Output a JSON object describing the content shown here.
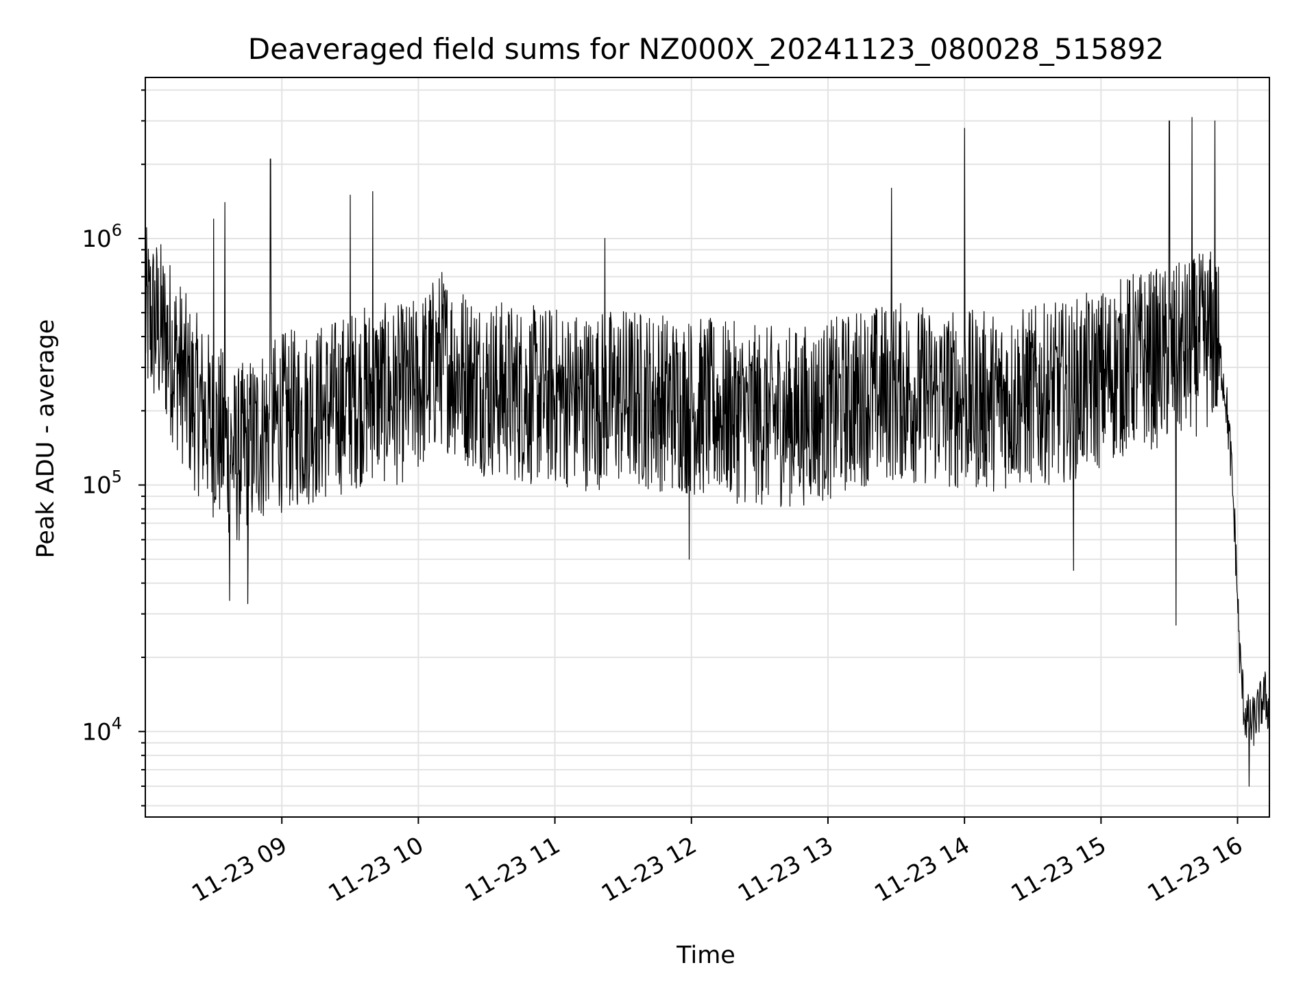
{
  "chart_data": {
    "type": "line",
    "title": "Deaveraged field sums for NZ000X_20241123_080028_515892",
    "xlabel": "Time",
    "ylabel": "Peak ADU - average",
    "yscale": "log",
    "grid": true,
    "x_start": "2024-11-23 08:00",
    "x_end": "2024-11-23 16:14",
    "ylim": [
      4500,
      4500000
    ],
    "x_ticks": [
      {
        "time": "2024-11-23 09:00",
        "label": "11-23 09"
      },
      {
        "time": "2024-11-23 10:00",
        "label": "11-23 10"
      },
      {
        "time": "2024-11-23 11:00",
        "label": "11-23 11"
      },
      {
        "time": "2024-11-23 12:00",
        "label": "11-23 12"
      },
      {
        "time": "2024-11-23 13:00",
        "label": "11-23 13"
      },
      {
        "time": "2024-11-23 14:00",
        "label": "11-23 14"
      },
      {
        "time": "2024-11-23 15:00",
        "label": "11-23 15"
      },
      {
        "time": "2024-11-23 16:00",
        "label": "11-23 16"
      }
    ],
    "y_ticks": [
      {
        "value": 10000,
        "base": "10",
        "exp": "4"
      },
      {
        "value": 100000,
        "base": "10",
        "exp": "5"
      },
      {
        "value": 1000000,
        "base": "10",
        "exp": "6"
      }
    ],
    "series": [
      {
        "color": "#000000",
        "points": [
          [
            "2024-11-23 08:00",
            480000
          ],
          [
            "2024-11-23 08:05",
            450000
          ],
          [
            "2024-11-23 08:10",
            380000
          ],
          [
            "2024-11-23 08:15",
            300000
          ],
          [
            "2024-11-23 08:20",
            230000
          ],
          [
            "2024-11-23 08:25",
            200000
          ],
          [
            "2024-11-23 08:30",
            170000
          ],
          [
            "2024-11-23 08:35",
            150000
          ],
          [
            "2024-11-23 08:40",
            130000
          ],
          [
            "2024-11-23 08:45",
            140000
          ],
          [
            "2024-11-23 08:50",
            160000
          ],
          [
            "2024-11-23 08:55",
            170000
          ],
          [
            "2024-11-23 09:00",
            180000
          ],
          [
            "2024-11-23 09:10",
            190000
          ],
          [
            "2024-11-23 09:20",
            200000
          ],
          [
            "2024-11-23 09:30",
            220000
          ],
          [
            "2024-11-23 09:40",
            240000
          ],
          [
            "2024-11-23 09:50",
            230000
          ],
          [
            "2024-11-23 10:00",
            250000
          ],
          [
            "2024-11-23 10:10",
            330000
          ],
          [
            "2024-11-23 10:20",
            280000
          ],
          [
            "2024-11-23 10:30",
            250000
          ],
          [
            "2024-11-23 10:40",
            240000
          ],
          [
            "2024-11-23 10:50",
            230000
          ],
          [
            "2024-11-23 11:00",
            230000
          ],
          [
            "2024-11-23 11:15",
            220000
          ],
          [
            "2024-11-23 11:30",
            230000
          ],
          [
            "2024-11-23 11:45",
            220000
          ],
          [
            "2024-11-23 12:00",
            210000
          ],
          [
            "2024-11-23 12:15",
            200000
          ],
          [
            "2024-11-23 12:30",
            190000
          ],
          [
            "2024-11-23 12:45",
            190000
          ],
          [
            "2024-11-23 13:00",
            200000
          ],
          [
            "2024-11-23 13:15",
            230000
          ],
          [
            "2024-11-23 13:30",
            240000
          ],
          [
            "2024-11-23 13:45",
            230000
          ],
          [
            "2024-11-23 14:00",
            220000
          ],
          [
            "2024-11-23 14:15",
            220000
          ],
          [
            "2024-11-23 14:30",
            230000
          ],
          [
            "2024-11-23 14:45",
            240000
          ],
          [
            "2024-11-23 15:00",
            270000
          ],
          [
            "2024-11-23 15:15",
            320000
          ],
          [
            "2024-11-23 15:30",
            330000
          ],
          [
            "2024-11-23 15:40",
            360000
          ],
          [
            "2024-11-23 15:50",
            400000
          ],
          [
            "2024-11-23 15:53",
            300000
          ],
          [
            "2024-11-23 15:55",
            220000
          ],
          [
            "2024-11-23 15:57",
            130000
          ],
          [
            "2024-11-23 15:59",
            60000
          ],
          [
            "2024-11-23 16:01",
            20000
          ],
          [
            "2024-11-23 16:03",
            12000
          ],
          [
            "2024-11-23 16:06",
            10500
          ],
          [
            "2024-11-23 16:09",
            12000
          ],
          [
            "2024-11-23 16:12",
            14000
          ],
          [
            "2024-11-23 16:14",
            12000
          ]
        ],
        "spikes": [
          [
            "2024-11-23 08:30",
            1200000
          ],
          [
            "2024-11-23 08:35",
            1400000
          ],
          [
            "2024-11-23 08:55",
            2100000
          ],
          [
            "2024-11-23 09:30",
            1500000
          ],
          [
            "2024-11-23 09:40",
            1550000
          ],
          [
            "2024-11-23 11:22",
            1000000
          ],
          [
            "2024-11-23 13:28",
            1600000
          ],
          [
            "2024-11-23 14:00",
            2800000
          ],
          [
            "2024-11-23 15:30",
            3000000
          ],
          [
            "2024-11-23 15:40",
            3100000
          ],
          [
            "2024-11-23 15:50",
            3000000
          ],
          [
            "2024-11-23 08:37",
            34000
          ],
          [
            "2024-11-23 08:45",
            33000
          ],
          [
            "2024-11-23 11:59",
            50000
          ],
          [
            "2024-11-23 14:48",
            45000
          ],
          [
            "2024-11-23 15:33",
            27000
          ],
          [
            "2024-11-23 16:05",
            6000
          ]
        ]
      }
    ]
  }
}
